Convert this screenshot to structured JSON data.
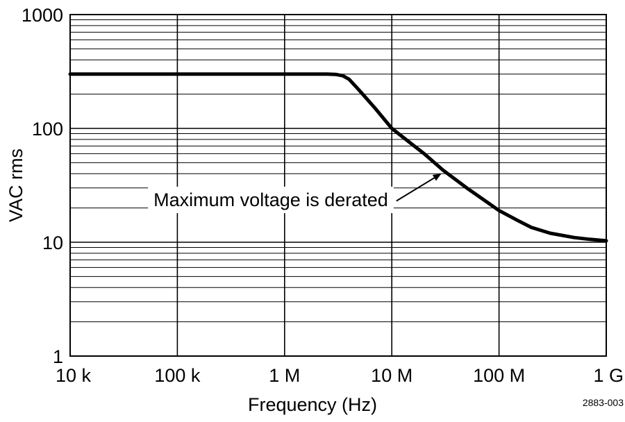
{
  "chart_data": {
    "type": "line",
    "title": "",
    "xlabel": "Frequency (Hz)",
    "ylabel": "VAC rms",
    "x_scale": "log",
    "y_scale": "log",
    "xlim": [
      10000,
      1000000000
    ],
    "ylim": [
      1,
      1000
    ],
    "x_ticks": [
      {
        "value": 10000,
        "label": "10 k"
      },
      {
        "value": 100000,
        "label": "100 k"
      },
      {
        "value": 1000000,
        "label": "1 M"
      },
      {
        "value": 10000000,
        "label": "10 M"
      },
      {
        "value": 100000000,
        "label": "100 M"
      },
      {
        "value": 1000000000,
        "label": "1 G"
      }
    ],
    "y_ticks": [
      {
        "value": 1,
        "label": "1"
      },
      {
        "value": 10,
        "label": "10"
      },
      {
        "value": 100,
        "label": "100"
      },
      {
        "value": 1000,
        "label": "1000"
      }
    ],
    "grid": true,
    "legend": "none",
    "series": [
      {
        "x": [
          10000,
          100000,
          1000000,
          2500000,
          3000000,
          3500000,
          4000000,
          5000000,
          7000000,
          10000000,
          15000000,
          20000000,
          30000000,
          50000000,
          70000000,
          100000000,
          150000000,
          200000000,
          300000000,
          500000000,
          700000000,
          1000000000
        ],
        "y": [
          300,
          300,
          300,
          300,
          298,
          290,
          270,
          215,
          150,
          100,
          74,
          60,
          43,
          30,
          24,
          19,
          15.5,
          13.5,
          12.0,
          11.0,
          10.6,
          10.3
        ]
      }
    ],
    "annotations": [
      {
        "text": "Maximum voltage is derated",
        "arrow_to": {
          "x": 30000000,
          "y": 43
        }
      }
    ],
    "figure_id": "2883-003"
  }
}
